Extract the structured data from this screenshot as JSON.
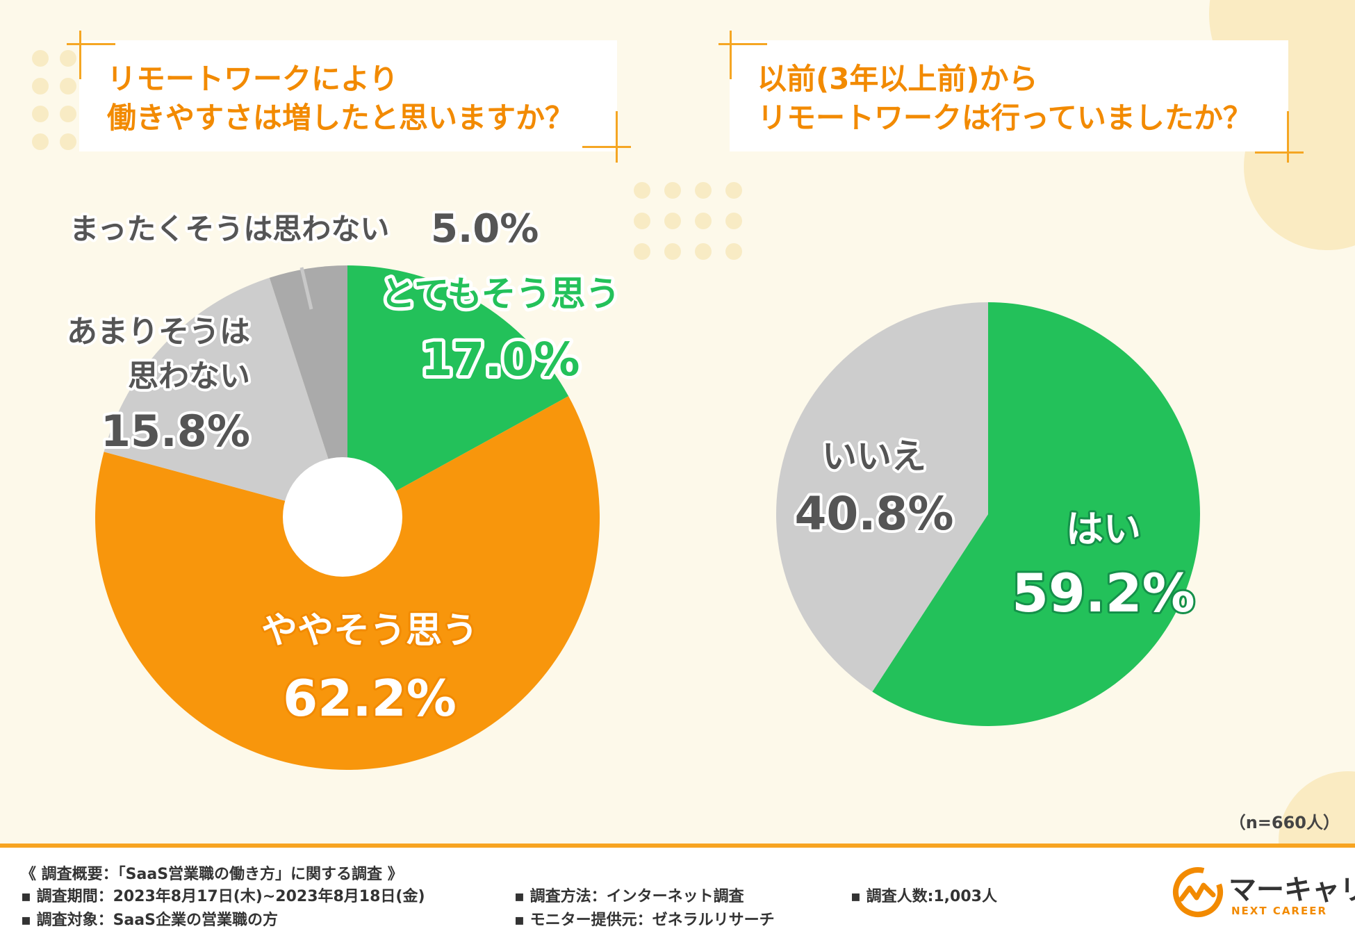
{
  "left_chart": {
    "title_line1": "リモートワークにより",
    "title_line2": "働きやすさは増したと思いますか？"
  },
  "right_chart": {
    "title_line1": "以前(3年以上前)から",
    "title_line2": "リモートワークは行っていましたか？"
  },
  "chart_data": [
    {
      "type": "pie",
      "title": "リモートワークにより働きやすさは増したと思いますか？",
      "slices": [
        {
          "label": "とてもそう思う",
          "value": 17.0,
          "display": "17.0%",
          "color": "#23c15a"
        },
        {
          "label": "ややそう思う",
          "value": 62.2,
          "display": "62.2%",
          "color": "#f8960c"
        },
        {
          "label": "あまりそうは思わない",
          "value": 15.8,
          "display": "15.8%",
          "color": "#cdcdcd"
        },
        {
          "label": "まったくそうは思わない",
          "value": 5.0,
          "display": "5.0%",
          "color": "#aaaaaa"
        }
      ]
    },
    {
      "type": "pie",
      "title": "以前(3年以上前)からリモートワークは行っていましたか？",
      "slices": [
        {
          "label": "はい",
          "value": 59.2,
          "display": "59.2%",
          "color": "#23c15a"
        },
        {
          "label": "いいえ",
          "value": 40.8,
          "display": "40.8%",
          "color": "#cdcdcd"
        }
      ]
    }
  ],
  "sample_note": "（n=660人）",
  "footer": {
    "overview": "《 調査概要：「SaaS営業職の働き方」に関する調査 》",
    "period": "▪ 調査期間：2023年8月17日(木)~2023年8月18日(金)",
    "target": "▪ 調査対象：SaaS企業の営業職の方",
    "method": "▪ 調査方法：インターネット調査",
    "provider": "▪ モニター提供元：ゼネラルリサーチ",
    "count": "▪ 調査人数:1,003人"
  },
  "logo": {
    "name": "マーキャリ",
    "sub": "NEXT CAREER"
  }
}
